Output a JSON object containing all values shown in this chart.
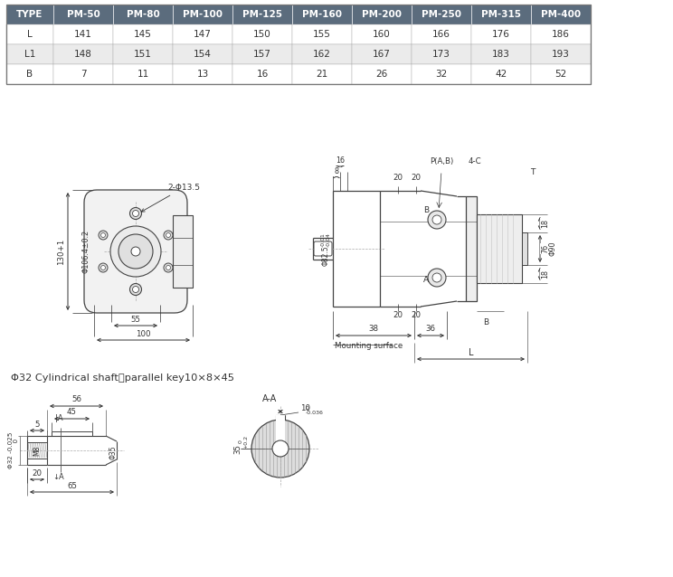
{
  "table_headers": [
    "TYPE",
    "PM-50",
    "PM-80",
    "PM-100",
    "PM-125",
    "PM-160",
    "PM-200",
    "PM-250",
    "PM-315",
    "PM-400"
  ],
  "table_rows": [
    [
      "L",
      "141",
      "145",
      "147",
      "150",
      "155",
      "160",
      "166",
      "176",
      "186"
    ],
    [
      "L1",
      "148",
      "151",
      "154",
      "157",
      "162",
      "167",
      "173",
      "183",
      "193"
    ],
    [
      "B",
      "7",
      "11",
      "13",
      "16",
      "21",
      "26",
      "32",
      "42",
      "52"
    ]
  ],
  "header_bg": "#5b6c7d",
  "header_fg": "#ffffff",
  "row_bg_odd": "#ebebeb",
  "row_bg_even": "#ffffff",
  "line_color": "#444444",
  "dim_color": "#333333",
  "bg_color": "#ffffff"
}
